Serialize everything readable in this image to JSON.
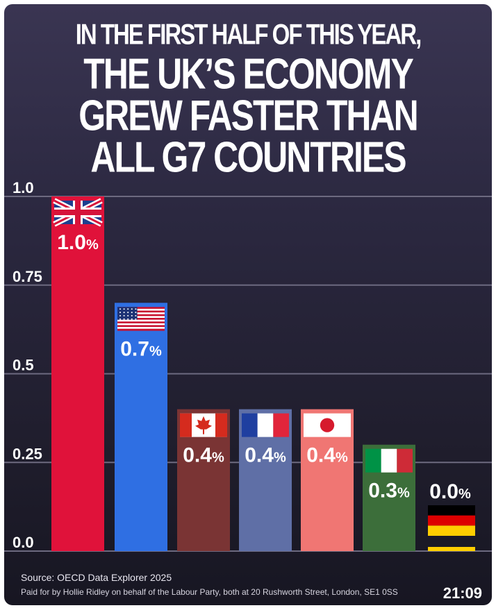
{
  "headline": {
    "line1": "IN THE FIRST HALF OF THIS YEAR,",
    "line2": "THE UK’S ECONOMY",
    "line3": "GREW FASTER THAN",
    "line4": "ALL G7 COUNTRIES"
  },
  "chart_data": {
    "type": "bar",
    "title": "IN THE FIRST HALF OF THIS YEAR, THE UK’S ECONOMY GREW FASTER THAN ALL G7 COUNTRIES",
    "xlabel": "",
    "ylabel": "",
    "ylim": [
      0,
      1.0
    ],
    "yticks": [
      "0.0",
      "0.25",
      "0.5",
      "0.75",
      "1.0"
    ],
    "grid": true,
    "categories": [
      "UK",
      "US",
      "Canada",
      "France",
      "Japan",
      "Italy",
      "Germany"
    ],
    "values": [
      1.0,
      0.7,
      0.4,
      0.4,
      0.4,
      0.3,
      0.0
    ],
    "labels": [
      "1.0%",
      "0.7%",
      "0.4%",
      "0.4%",
      "0.4%",
      "0.3%",
      "0.0%"
    ],
    "colors": [
      "#e0123a",
      "#2f6fe3",
      "#7a3434",
      "#5f6fa6",
      "#f07673",
      "#3c6e3a",
      "#1f1d2c"
    ],
    "flags": [
      "uk-flag",
      "us-flag",
      "canada-flag",
      "france-flag",
      "japan-flag",
      "italy-flag",
      "germany-flag"
    ]
  },
  "footer": {
    "source": "Source: OECD Data Explorer 2025",
    "paid_for": "Paid for by Hollie Ridley on behalf of the Labour Party, both at 20 Rushworth Street, London, SE1 0SS"
  },
  "timestamp": "21:09"
}
